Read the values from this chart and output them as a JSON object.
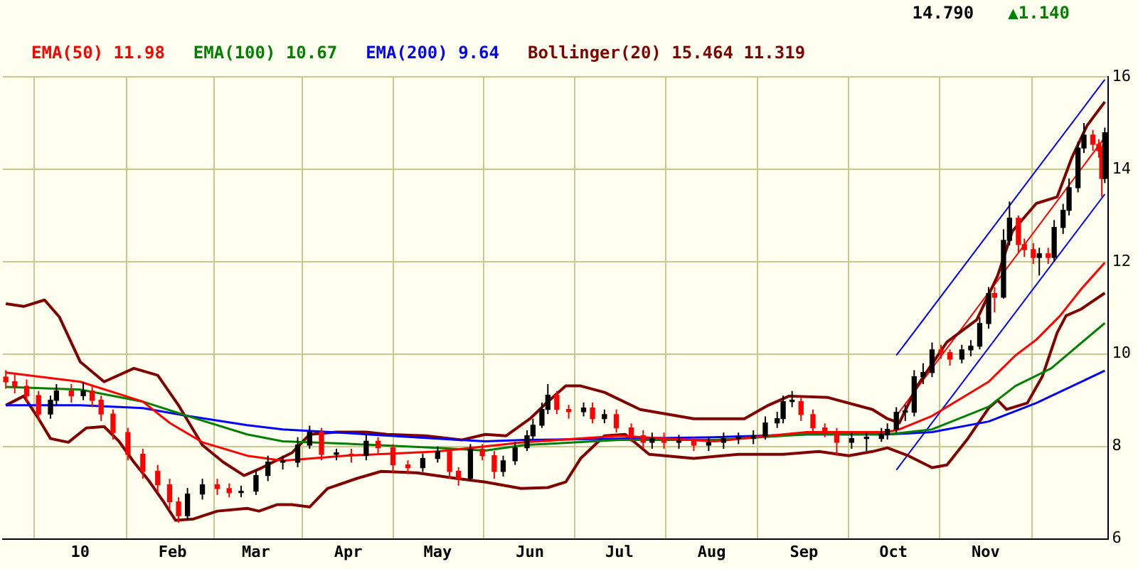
{
  "chart_data": {
    "type": "candlestick",
    "colors": [
      "#ff0000",
      "#ff0000",
      "#ff0000",
      "#ff0000",
      "#000000",
      "#000000",
      "#ff0000",
      "#000000",
      "#ff0000",
      "#ff0000",
      "#ff0000",
      "#ff0000",
      "#ff0000",
      "#ff0000",
      "#ff0000",
      "#ff0000",
      "#000000",
      "#000000",
      "#ff0000",
      "#ff0000",
      "#000000",
      "#000000",
      "#000000",
      "#000000",
      "#000000",
      "#000000",
      "#ff0000",
      "#000000",
      "#ff0000",
      "#000000",
      "#ff0000",
      "#ff0000",
      "#ff0000",
      "#000000",
      "#000000",
      "#ff0000",
      "#ff0000",
      "#000000",
      "#ff0000",
      "#ff0000",
      "#000000",
      "#000000",
      "#000000",
      "#000000",
      "#000000",
      "#000000",
      "#ff0000",
      "#ff0000",
      "#000000",
      "#ff0000",
      "#000000",
      "#ff0000",
      "#ff0000",
      "#ff0000",
      "#000000",
      "#ff0000",
      "#000000",
      "#ff0000",
      "#000000",
      "#000000",
      "#000000",
      "#000000",
      "#000000",
      "#000000",
      "#000000",
      "#000000",
      "#ff0000",
      "#ff0000",
      "#ff0000",
      "#ff0000",
      "#000000",
      "#000000",
      "#000000",
      "#000000",
      "#000000",
      "#000000",
      "#000000",
      "#000000",
      "#000000",
      "#ff0000",
      "#ff0000",
      "#000000",
      "#000000",
      "#000000",
      "#000000",
      "#ff0000",
      "#000000",
      "#000000",
      "#ff0000",
      "#ff0000",
      "#ff0000",
      "#000000",
      "#ff0000",
      "#000000",
      "#000000",
      "#000000",
      "#000000",
      "#000000",
      "#ff0000",
      "#ff0000",
      "#ff0000",
      "#000000"
    ],
    "annotations": [
      "14.790",
      "▲1.140"
    ],
    "xlim": [
      "2009-12-06",
      "2010-12-12"
    ],
    "xticks": [
      {
        "value": "2010-01-01",
        "label": "10"
      },
      {
        "value": "2010-02-01",
        "label": "Feb"
      },
      {
        "value": "2010-03-01",
        "label": "Mar"
      },
      {
        "value": "2010-04-01",
        "label": "Apr"
      },
      {
        "value": "2010-05-01",
        "label": "May"
      },
      {
        "value": "2010-06-01",
        "label": "Jun"
      },
      {
        "value": "2010-07-01",
        "label": "Jul"
      },
      {
        "value": "2010-08-01",
        "label": "Aug"
      },
      {
        "value": "2010-09-01",
        "label": "Sep"
      },
      {
        "value": "2010-10-01",
        "label": "Oct"
      },
      {
        "value": "2010-11-01",
        "label": "Nov"
      }
    ],
    "ylim": [
      6,
      16
    ],
    "yticks": [
      6,
      8,
      10,
      12,
      14,
      16
    ],
    "grid": true,
    "legend": "top left",
    "x": [
      "2009-12-07",
      "2009-12-10",
      "2009-12-14",
      "2009-12-18",
      "2009-12-22",
      "2009-12-24",
      "2009-12-29",
      "2010-01-02",
      "2010-01-05",
      "2010-01-08",
      "2010-01-12",
      "2010-01-17",
      "2010-01-22",
      "2010-01-27",
      "2010-01-31",
      "2010-02-03",
      "2010-02-06",
      "2010-02-11",
      "2010-02-16",
      "2010-02-20",
      "2010-02-24",
      "2010-03-01",
      "2010-03-05",
      "2010-03-10",
      "2010-03-15",
      "2010-03-19",
      "2010-03-23",
      "2010-03-28",
      "2010-04-02",
      "2010-04-07",
      "2010-04-11",
      "2010-04-16",
      "2010-04-21",
      "2010-04-26",
      "2010-05-01",
      "2010-05-05",
      "2010-05-08",
      "2010-05-12",
      "2010-05-16",
      "2010-05-20",
      "2010-05-23",
      "2010-05-27",
      "2010-05-31",
      "2010-06-02",
      "2010-06-05",
      "2010-06-07",
      "2010-06-10",
      "2010-06-14",
      "2010-06-19",
      "2010-06-22",
      "2010-06-26",
      "2010-06-30",
      "2010-07-05",
      "2010-07-09",
      "2010-07-12",
      "2010-07-16",
      "2010-07-21",
      "2010-07-26",
      "2010-07-31",
      "2010-08-05",
      "2010-08-10",
      "2010-08-15",
      "2010-08-19",
      "2010-08-23",
      "2010-08-25",
      "2010-08-28",
      "2010-08-31",
      "2010-09-04",
      "2010-09-08",
      "2010-09-12",
      "2010-09-17",
      "2010-09-22",
      "2010-09-27",
      "2010-09-29",
      "2010-10-02",
      "2010-10-05",
      "2010-10-08",
      "2010-10-11",
      "2010-10-14",
      "2010-10-17",
      "2010-10-20",
      "2010-10-24",
      "2010-10-27",
      "2010-10-30",
      "2010-11-02",
      "2010-11-04",
      "2010-11-07",
      "2010-11-09",
      "2010-11-12",
      "2010-11-14",
      "2010-11-17",
      "2010-11-19",
      "2010-11-22",
      "2010-11-24",
      "2010-11-27",
      "2010-11-29",
      "2010-12-02",
      "2010-12-04",
      "2010-12-07",
      "2010-12-09",
      "2010-12-10",
      "2010-12-11"
    ],
    "ohlc": [
      [
        9.5,
        9.65,
        9.25,
        9.4
      ],
      [
        9.4,
        9.55,
        9.15,
        9.3
      ],
      [
        9.3,
        9.45,
        8.95,
        9.1
      ],
      [
        9.1,
        9.2,
        8.55,
        8.7
      ],
      [
        8.7,
        9.1,
        8.6,
        9.0
      ],
      [
        9.0,
        9.35,
        8.9,
        9.2
      ],
      [
        9.2,
        9.35,
        8.95,
        9.1
      ],
      [
        9.1,
        9.4,
        9.0,
        9.2
      ],
      [
        9.2,
        9.3,
        8.85,
        9.0
      ],
      [
        9.0,
        9.1,
        8.55,
        8.7
      ],
      [
        8.7,
        8.8,
        8.15,
        8.3
      ],
      [
        8.3,
        8.4,
        7.7,
        7.83
      ],
      [
        7.83,
        7.95,
        7.3,
        7.46
      ],
      [
        7.46,
        7.6,
        7.0,
        7.17
      ],
      [
        7.17,
        7.3,
        6.65,
        6.8
      ],
      [
        6.8,
        6.9,
        6.35,
        6.5
      ],
      [
        6.5,
        7.1,
        6.4,
        6.97
      ],
      [
        6.97,
        7.3,
        6.85,
        7.17
      ],
      [
        7.17,
        7.3,
        6.95,
        7.09
      ],
      [
        7.09,
        7.2,
        6.9,
        7.0
      ],
      [
        7.0,
        7.15,
        6.9,
        7.03
      ],
      [
        7.03,
        7.5,
        6.95,
        7.37
      ],
      [
        7.37,
        7.8,
        7.25,
        7.66
      ],
      [
        7.66,
        7.8,
        7.5,
        7.66
      ],
      [
        7.66,
        8.2,
        7.55,
        8.03
      ],
      [
        8.03,
        8.45,
        7.95,
        8.31
      ],
      [
        8.31,
        8.4,
        7.7,
        7.83
      ],
      [
        7.83,
        7.95,
        7.7,
        7.83
      ],
      [
        7.83,
        7.95,
        7.65,
        7.8
      ],
      [
        7.8,
        8.25,
        7.7,
        8.11
      ],
      [
        8.11,
        8.2,
        7.85,
        7.97
      ],
      [
        7.97,
        8.05,
        7.45,
        7.6
      ],
      [
        7.6,
        7.7,
        7.4,
        7.54
      ],
      [
        7.54,
        7.85,
        7.45,
        7.74
      ],
      [
        7.74,
        8.0,
        7.65,
        7.89
      ],
      [
        7.89,
        7.95,
        7.3,
        7.46
      ],
      [
        7.46,
        7.55,
        7.15,
        7.31
      ],
      [
        7.31,
        8.05,
        7.25,
        7.94
      ],
      [
        7.94,
        8.05,
        7.7,
        7.8
      ],
      [
        7.8,
        7.9,
        7.3,
        7.46
      ],
      [
        7.46,
        7.8,
        7.35,
        7.69
      ],
      [
        7.69,
        8.1,
        7.6,
        7.97
      ],
      [
        7.97,
        8.35,
        7.9,
        8.23
      ],
      [
        8.23,
        8.6,
        8.15,
        8.46
      ],
      [
        8.46,
        8.95,
        8.4,
        8.8
      ],
      [
        8.8,
        9.35,
        8.7,
        9.11
      ],
      [
        9.11,
        9.2,
        8.7,
        8.8
      ],
      [
        8.8,
        8.9,
        8.6,
        8.75
      ],
      [
        8.75,
        8.95,
        8.65,
        8.83
      ],
      [
        8.83,
        8.95,
        8.5,
        8.6
      ],
      [
        8.6,
        8.8,
        8.5,
        8.69
      ],
      [
        8.69,
        8.8,
        8.3,
        8.4
      ],
      [
        8.4,
        8.5,
        8.1,
        8.23
      ],
      [
        8.23,
        8.35,
        7.95,
        8.09
      ],
      [
        8.09,
        8.3,
        7.95,
        8.17
      ],
      [
        8.17,
        8.3,
        7.95,
        8.09
      ],
      [
        8.09,
        8.25,
        7.95,
        8.11
      ],
      [
        8.11,
        8.2,
        7.9,
        8.03
      ],
      [
        8.03,
        8.2,
        7.9,
        8.09
      ],
      [
        8.09,
        8.3,
        7.95,
        8.17
      ],
      [
        8.17,
        8.3,
        8.05,
        8.17
      ],
      [
        8.17,
        8.35,
        8.05,
        8.23
      ],
      [
        8.23,
        8.65,
        8.15,
        8.51
      ],
      [
        8.51,
        8.75,
        8.4,
        8.6
      ],
      [
        8.6,
        9.1,
        8.5,
        8.97
      ],
      [
        8.97,
        9.2,
        8.85,
        8.97
      ],
      [
        8.97,
        9.05,
        8.55,
        8.69
      ],
      [
        8.69,
        8.8,
        8.3,
        8.4
      ],
      [
        8.4,
        8.5,
        8.2,
        8.31
      ],
      [
        8.31,
        8.4,
        7.8,
        8.09
      ],
      [
        8.09,
        8.3,
        7.95,
        8.17
      ],
      [
        8.17,
        8.3,
        7.9,
        8.17
      ],
      [
        8.17,
        8.4,
        8.1,
        8.26
      ],
      [
        8.26,
        8.5,
        8.15,
        8.37
      ],
      [
        8.37,
        8.85,
        8.3,
        8.74
      ],
      [
        8.74,
        8.9,
        8.55,
        8.74
      ],
      [
        8.74,
        9.65,
        8.65,
        9.51
      ],
      [
        9.51,
        9.8,
        9.35,
        9.6
      ],
      [
        9.6,
        10.25,
        9.5,
        10.09
      ],
      [
        10.09,
        10.2,
        9.9,
        10.03
      ],
      [
        10.03,
        10.1,
        9.75,
        9.89
      ],
      [
        9.89,
        10.2,
        9.8,
        10.09
      ],
      [
        10.09,
        10.3,
        9.95,
        10.17
      ],
      [
        10.17,
        10.8,
        10.1,
        10.66
      ],
      [
        10.66,
        11.45,
        10.55,
        11.31
      ],
      [
        11.31,
        11.45,
        10.9,
        11.23
      ],
      [
        11.23,
        12.7,
        11.2,
        12.46
      ],
      [
        12.46,
        13.3,
        12.35,
        12.94
      ],
      [
        12.94,
        13.0,
        12.2,
        12.37
      ],
      [
        12.37,
        12.5,
        12.1,
        12.26
      ],
      [
        12.26,
        12.4,
        11.95,
        12.09
      ],
      [
        12.09,
        12.3,
        11.7,
        12.17
      ],
      [
        12.17,
        12.3,
        11.95,
        12.09
      ],
      [
        12.09,
        12.9,
        12.0,
        12.74
      ],
      [
        12.74,
        13.25,
        12.6,
        13.11
      ],
      [
        13.11,
        13.8,
        13.0,
        13.6
      ],
      [
        13.6,
        14.6,
        13.5,
        14.46
      ],
      [
        14.46,
        15.0,
        14.35,
        14.74
      ],
      [
        14.74,
        14.85,
        14.4,
        14.54
      ],
      [
        14.54,
        14.65,
        14.25,
        14.4
      ],
      [
        14.4,
        14.5,
        13.4,
        13.8
      ],
      [
        13.8,
        14.9,
        13.7,
        14.79
      ]
    ],
    "series": [
      {
        "type": "line",
        "name": "EMA(50) 11.98",
        "color": "#ff0000",
        "x": [
          "2009-12-07",
          "2010-01-01",
          "2010-01-22",
          "2010-01-31",
          "2010-02-11",
          "2010-02-26",
          "2010-03-10",
          "2010-03-31",
          "2010-05-01",
          "2010-05-30",
          "2010-07-01",
          "2010-08-02",
          "2010-08-20",
          "2010-09-02",
          "2010-09-29",
          "2010-10-03",
          "2010-10-14",
          "2010-11-02",
          "2010-11-11",
          "2010-11-18",
          "2010-11-26",
          "2010-12-03",
          "2010-12-11"
        ],
        "values": [
          9.6,
          9.4,
          8.97,
          8.51,
          8.09,
          7.8,
          7.69,
          7.8,
          7.89,
          8.09,
          8.23,
          8.11,
          8.23,
          8.31,
          8.31,
          8.37,
          8.66,
          9.4,
          9.97,
          10.31,
          10.83,
          11.4,
          11.98
        ]
      },
      {
        "type": "line",
        "name": "EMA(100) 10.67",
        "color": "#008000",
        "x": [
          "2009-12-07",
          "2010-01-01",
          "2010-01-22",
          "2010-02-06",
          "2010-02-26",
          "2010-03-10",
          "2010-03-31",
          "2010-05-01",
          "2010-05-17",
          "2010-05-30",
          "2010-07-01",
          "2010-08-02",
          "2010-09-02",
          "2010-09-29",
          "2010-10-14",
          "2010-11-02",
          "2010-11-11",
          "2010-11-23",
          "2010-12-11"
        ],
        "values": [
          9.29,
          9.23,
          8.97,
          8.66,
          8.26,
          8.11,
          8.06,
          7.97,
          7.91,
          8.03,
          8.14,
          8.14,
          8.26,
          8.26,
          8.37,
          8.86,
          9.31,
          9.69,
          10.67
        ]
      },
      {
        "type": "line",
        "name": "EMA(200) 9.64",
        "color": "#0000ff",
        "x": [
          "2009-12-07",
          "2010-01-01",
          "2010-01-22",
          "2010-02-06",
          "2010-02-26",
          "2010-03-10",
          "2010-03-31",
          "2010-05-01",
          "2010-05-17",
          "2010-05-30",
          "2010-07-01",
          "2010-08-02",
          "2010-09-02",
          "2010-09-29",
          "2010-10-14",
          "2010-11-02",
          "2010-11-18",
          "2010-12-11"
        ],
        "values": [
          8.89,
          8.89,
          8.83,
          8.66,
          8.46,
          8.37,
          8.29,
          8.17,
          8.11,
          8.14,
          8.17,
          8.2,
          8.26,
          8.26,
          8.31,
          8.54,
          8.94,
          9.64
        ]
      },
      {
        "type": "line",
        "name": "Bollinger(20) 15.464 11.319",
        "color": "#800000",
        "x": [
          "2009-12-07",
          "2009-12-13",
          "2009-12-20",
          "2009-12-25",
          "2010-01-01",
          "2010-01-09",
          "2010-01-19",
          "2010-01-27",
          "2010-02-03",
          "2010-02-11",
          "2010-02-18",
          "2010-02-25",
          "2010-03-03",
          "2010-03-13",
          "2010-03-19",
          "2010-03-28",
          "2010-04-07",
          "2010-04-14",
          "2010-04-27",
          "2010-05-09",
          "2010-05-17",
          "2010-05-24",
          "2010-06-01",
          "2010-06-07",
          "2010-06-13",
          "2010-06-18",
          "2010-06-26",
          "2010-07-08",
          "2010-07-26",
          "2010-08-12",
          "2010-08-20",
          "2010-08-27",
          "2010-09-09",
          "2010-09-24",
          "2010-09-29",
          "2010-10-03",
          "2010-10-09",
          "2010-10-19",
          "2010-10-29",
          "2010-11-05",
          "2010-11-10",
          "2010-11-18",
          "2010-11-25",
          "2010-11-30",
          "2010-12-05",
          "2010-12-11"
        ],
        "values": [
          11.09,
          11.03,
          11.17,
          10.8,
          9.83,
          9.4,
          9.69,
          9.54,
          8.89,
          8.03,
          7.66,
          7.37,
          7.54,
          7.86,
          8.26,
          8.31,
          8.31,
          8.26,
          8.23,
          8.14,
          8.26,
          8.23,
          8.6,
          8.97,
          9.31,
          9.31,
          9.17,
          8.8,
          8.6,
          8.6,
          8.89,
          9.09,
          9.06,
          8.8,
          8.6,
          8.51,
          9.31,
          10.26,
          10.74,
          11.69,
          12.66,
          13.26,
          13.4,
          14.26,
          14.94,
          15.46
        ]
      },
      {
        "type": "line",
        "color": "#800000",
        "x": [
          "2009-12-07",
          "2009-12-13",
          "2009-12-18",
          "2009-12-22",
          "2009-12-28",
          "2010-01-03",
          "2010-01-09",
          "2010-01-14",
          "2010-01-19",
          "2010-01-24",
          "2010-01-29",
          "2010-02-02",
          "2010-02-08",
          "2010-02-16",
          "2010-02-26",
          "2010-03-02",
          "2010-03-08",
          "2010-03-13",
          "2010-03-19",
          "2010-03-25",
          "2010-04-04",
          "2010-04-12",
          "2010-04-24",
          "2010-05-07",
          "2010-05-17",
          "2010-05-29",
          "2010-06-07",
          "2010-06-13",
          "2010-06-18",
          "2010-06-26",
          "2010-07-03",
          "2010-07-11",
          "2010-07-26",
          "2010-08-10",
          "2010-08-25",
          "2010-09-06",
          "2010-09-16",
          "2010-09-24",
          "2010-09-29",
          "2010-10-06",
          "2010-10-14",
          "2010-10-19",
          "2010-10-26",
          "2010-11-02",
          "2010-11-05",
          "2010-11-08",
          "2010-11-15",
          "2010-11-20",
          "2010-11-25",
          "2010-11-28",
          "2010-12-03",
          "2010-12-11"
        ],
        "values": [
          8.89,
          9.09,
          8.6,
          8.17,
          8.09,
          8.4,
          8.43,
          8.11,
          7.66,
          7.26,
          6.8,
          6.4,
          6.43,
          6.6,
          6.66,
          6.6,
          6.74,
          6.74,
          6.69,
          7.09,
          7.31,
          7.46,
          7.43,
          7.31,
          7.23,
          7.09,
          7.11,
          7.23,
          7.74,
          8.23,
          8.26,
          7.83,
          7.74,
          7.83,
          7.83,
          7.89,
          7.8,
          7.89,
          7.97,
          7.8,
          7.54,
          7.6,
          8.17,
          8.83,
          9.0,
          8.8,
          8.94,
          9.51,
          10.46,
          10.83,
          10.97,
          11.32
        ]
      },
      {
        "type": "line",
        "color": "#0000ff",
        "x": [
          "2010-10-02",
          "2010-12-11"
        ],
        "values": [
          9.97,
          15.94
        ]
      },
      {
        "type": "line",
        "color": "#ff0000",
        "x": [
          "2010-10-02",
          "2010-12-11"
        ],
        "values": [
          8.66,
          14.69
        ]
      },
      {
        "type": "line",
        "color": "#0000ff",
        "x": [
          "2010-10-02",
          "2010-12-11"
        ],
        "values": [
          7.49,
          13.46
        ]
      }
    ]
  }
}
